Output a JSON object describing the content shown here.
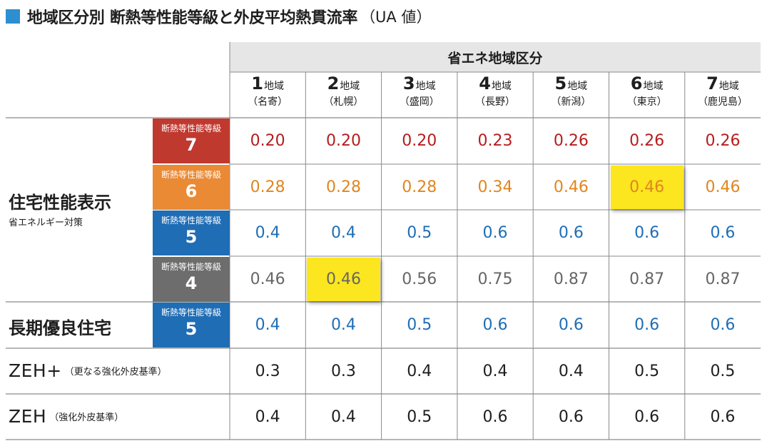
{
  "title": {
    "main": "地域区分別 断熱等性能等級と外皮平均熱貫流率",
    "sub": "（UA 値）"
  },
  "region_header": "省エネ地域区分",
  "zones": [
    {
      "num": "1",
      "suffix": "地域",
      "city": "（名寄）"
    },
    {
      "num": "2",
      "suffix": "地域",
      "city": "（札幌）"
    },
    {
      "num": "3",
      "suffix": "地域",
      "city": "（盛岡）"
    },
    {
      "num": "4",
      "suffix": "地域",
      "city": "（長野）"
    },
    {
      "num": "5",
      "suffix": "地域",
      "city": "（新潟）"
    },
    {
      "num": "6",
      "suffix": "地域",
      "city": "（東京）"
    },
    {
      "num": "7",
      "suffix": "地域",
      "city": "（鹿児島）"
    }
  ],
  "groups": {
    "jutaku": {
      "main": "住宅性能表示",
      "sub": "省エネルギー対策"
    },
    "choki": {
      "main": "長期優良住宅"
    },
    "zeh_plus": {
      "main": "ZEH+",
      "sub": "（更なる強化外皮基準）"
    },
    "zeh": {
      "main": "ZEH",
      "sub": "（強化外皮基準）"
    }
  },
  "grade_label": "断熱等性能等級",
  "rows": [
    {
      "grade": "7",
      "color": "#c0392f",
      "text_color": "#b71c1c",
      "values": [
        "0.20",
        "0.20",
        "0.20",
        "0.23",
        "0.26",
        "0.26",
        "0.26"
      ],
      "highlight": []
    },
    {
      "grade": "6",
      "color": "#ea8a34",
      "text_color": "#e0861f",
      "values": [
        "0.28",
        "0.28",
        "0.28",
        "0.34",
        "0.46",
        "0.46",
        "0.46"
      ],
      "highlight": [
        5
      ]
    },
    {
      "grade": "5",
      "color": "#1f6db5",
      "text_color": "#1f6db5",
      "values": [
        "0.4",
        "0.4",
        "0.5",
        "0.6",
        "0.6",
        "0.6",
        "0.6"
      ],
      "highlight": []
    },
    {
      "grade": "4",
      "color": "#6d6d6d",
      "text_color": "#666666",
      "values": [
        "0.46",
        "0.46",
        "0.56",
        "0.75",
        "0.87",
        "0.87",
        "0.87"
      ],
      "highlight": [
        1
      ]
    },
    {
      "grade": "5",
      "color": "#1f6db5",
      "text_color": "#1f6db5",
      "values": [
        "0.4",
        "0.4",
        "0.5",
        "0.6",
        "0.6",
        "0.6",
        "0.6"
      ],
      "highlight": []
    },
    {
      "grade": "",
      "color": "",
      "text_color": "#1e1e1e",
      "values": [
        "0.3",
        "0.3",
        "0.4",
        "0.4",
        "0.4",
        "0.5",
        "0.5"
      ],
      "highlight": []
    },
    {
      "grade": "",
      "color": "",
      "text_color": "#1e1e1e",
      "values": [
        "0.4",
        "0.4",
        "0.5",
        "0.6",
        "0.6",
        "0.6",
        "0.6"
      ],
      "highlight": []
    }
  ],
  "colors": {
    "title_marker": "#2e8fd0",
    "highlight": "#fce61f",
    "header_band": "#e6e6e6"
  }
}
